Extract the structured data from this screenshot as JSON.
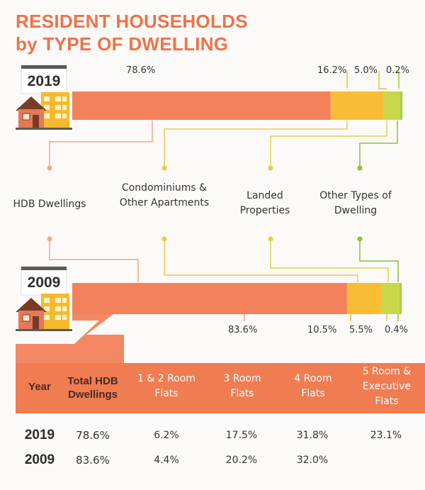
{
  "title": {
    "line1": "RESIDENT HOUSEHOLDS",
    "line2": "by TYPE OF DWELLING"
  },
  "years": [
    {
      "year": "2019",
      "segments": [
        78.6,
        16.2,
        5.0,
        0.2
      ],
      "labels": [
        "78.6%",
        "16.2%",
        "5.0%",
        "0.2%"
      ]
    },
    {
      "year": "2009",
      "segments": [
        83.6,
        10.5,
        5.5,
        0.4
      ],
      "labels": [
        "83.6%",
        "10.5%",
        "5.5%",
        "0.4%"
      ]
    }
  ],
  "categories": [
    {
      "label": "HDB Dwellings",
      "color": "#f3825c"
    },
    {
      "label": "Condominiums & Other Apartments",
      "color": "#f7b92e"
    },
    {
      "label": "Landed Properties",
      "color": "#f0be2e"
    },
    {
      "label": "Other Types of Dwelling",
      "color": "#9fc93d"
    }
  ],
  "colors": {
    "title": "#ef7248",
    "hdb": "#f3825c",
    "condo": "#f9bd35",
    "landed": "#c8d84a",
    "other": "#a3cc45",
    "table_header": "#f07c52"
  },
  "table": {
    "headers": {
      "year": "Year",
      "total": "Total HDB Dwellings",
      "c1": "1 & 2 Room Flats",
      "c2": "3 Room Flats",
      "c3": "4 Room Flats",
      "c4": "5 Room & Executive Flats"
    },
    "rows": [
      {
        "year": "2019",
        "total": "78.6%",
        "c1": "6.2%",
        "c2": "17.5%",
        "c3": "31.8%",
        "c4": "23.1%"
      },
      {
        "year": "2009",
        "total": "83.6%",
        "c1": "4.4%",
        "c2": "20.2%",
        "c3": "32.0%",
        "c4": ""
      }
    ]
  }
}
